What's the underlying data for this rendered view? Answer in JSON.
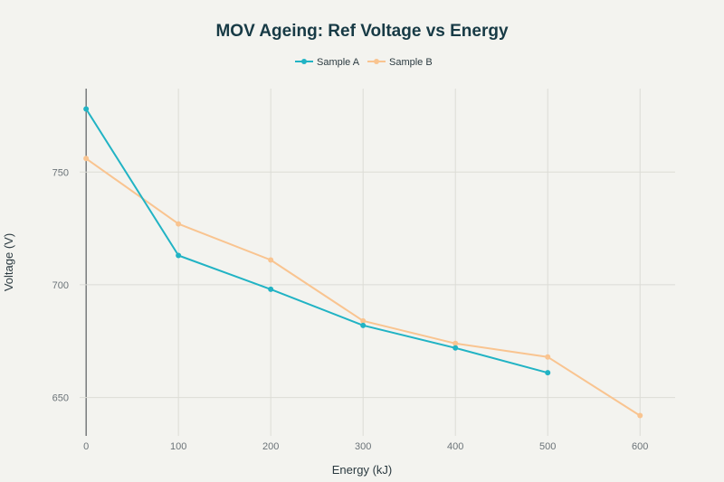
{
  "chart_data": {
    "type": "line",
    "title": "MOV Ageing: Ref Voltage vs Energy",
    "xlabel": "Energy (kJ)",
    "ylabel": "Voltage (V)",
    "xlim": [
      -7,
      638
    ],
    "ylim": [
      633,
      787
    ],
    "xticks": [
      0,
      100,
      200,
      300,
      400,
      500,
      600
    ],
    "yticks": [
      650,
      700,
      750
    ],
    "grid": true,
    "legend_position": "top-center",
    "series": [
      {
        "name": "Sample A",
        "color": "#21b3c4",
        "x": [
          0,
          100,
          200,
          300,
          400,
          500
        ],
        "y": [
          778,
          713,
          698,
          682,
          672,
          661
        ]
      },
      {
        "name": "Sample B",
        "color": "#f9c490",
        "x": [
          0,
          100,
          200,
          300,
          400,
          500,
          600
        ],
        "y": [
          756,
          727,
          711,
          684,
          674,
          668,
          642
        ]
      }
    ]
  }
}
